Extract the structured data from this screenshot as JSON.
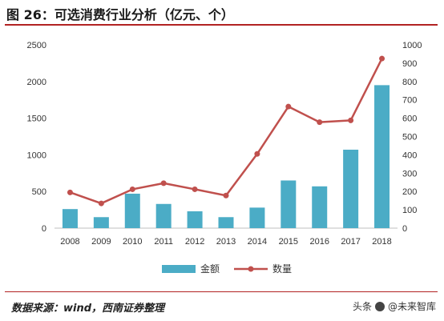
{
  "figure_title": "图 26：可选消费行业分析（亿元、个）",
  "source_note": "数据来源：wind，西南证券整理",
  "watermark": {
    "prefix": "头条",
    "handle": "@未来智库"
  },
  "colors": {
    "bar": "#4bacc6",
    "line": "#c0504d",
    "rule": "#b22222",
    "axis": "#bfbfbf"
  },
  "chart_data": {
    "type": "bar+line",
    "categories": [
      "2008",
      "2009",
      "2010",
      "2011",
      "2012",
      "2013",
      "2014",
      "2015",
      "2016",
      "2017",
      "2018"
    ],
    "series": [
      {
        "name": "金额",
        "type": "bar",
        "axis": "left",
        "values": [
          260,
          150,
          470,
          330,
          230,
          150,
          280,
          650,
          570,
          1070,
          1950
        ]
      },
      {
        "name": "数量",
        "type": "line",
        "axis": "right",
        "values": [
          195,
          135,
          212,
          245,
          212,
          178,
          405,
          663,
          578,
          588,
          925
        ]
      }
    ],
    "y_left": {
      "min": 0,
      "max": 2500,
      "ticks": [
        0,
        500,
        1000,
        1500,
        2000,
        2500
      ]
    },
    "y_right": {
      "min": 0,
      "max": 1000,
      "ticks": [
        0,
        100,
        200,
        300,
        400,
        500,
        600,
        700,
        800,
        900,
        1000
      ]
    },
    "legend_position": "bottom",
    "grid": false
  }
}
